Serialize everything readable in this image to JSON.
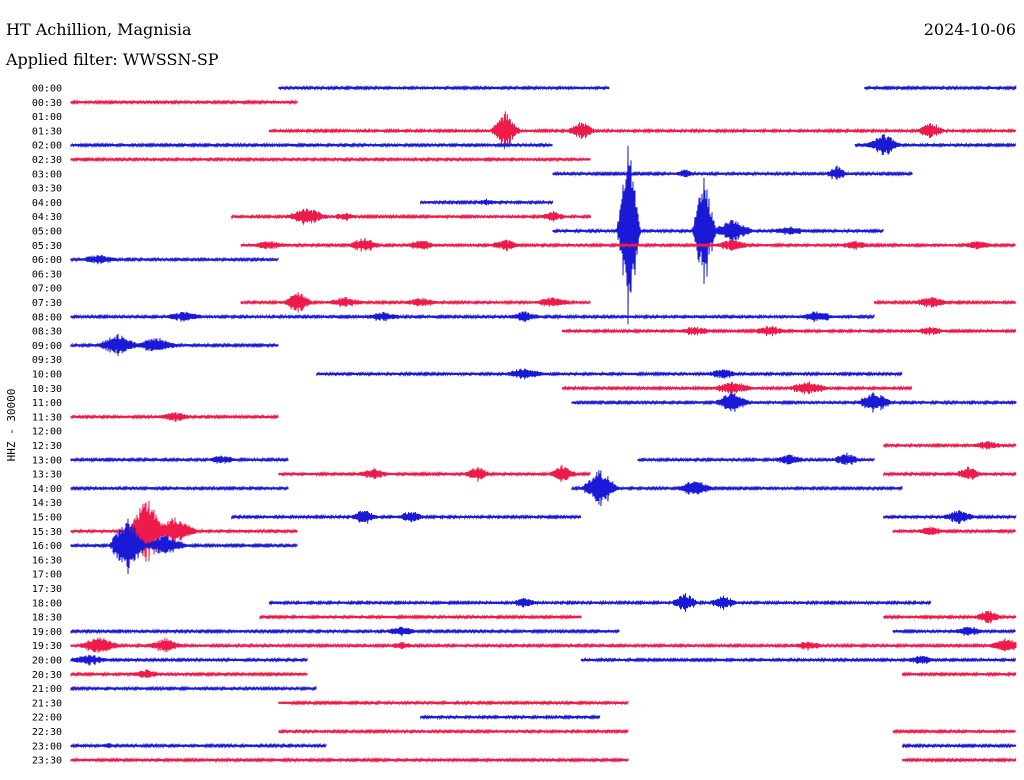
{
  "header": {
    "station": "HT Achillion, Magnisia",
    "date": "2024-10-06",
    "filter": "Applied filter: WWSSN-SP"
  },
  "chart_data": {
    "type": "line",
    "kind": "helicorder",
    "ylabel": "HHZ - 30000",
    "colors": {
      "even_row": "#1a1ad6",
      "odd_row": "#ee1a4a"
    },
    "rows": [
      {
        "label": "00:00",
        "segments": [
          [
            0.22,
            0.57
          ],
          [
            0.84,
            1.0
          ]
        ],
        "events": []
      },
      {
        "label": "00:30",
        "segments": [
          [
            0.0,
            0.24
          ]
        ],
        "events": []
      },
      {
        "label": "01:00",
        "segments": [],
        "events": []
      },
      {
        "label": "01:30",
        "segments": [
          [
            0.21,
            1.0
          ]
        ],
        "events": [
          [
            0.46,
            20,
            4
          ],
          [
            0.54,
            10,
            4
          ],
          [
            0.91,
            10,
            4
          ]
        ]
      },
      {
        "label": "02:00",
        "segments": [
          [
            0.0,
            0.51
          ],
          [
            0.83,
            1.0
          ]
        ],
        "events": [
          [
            0.86,
            12,
            5
          ]
        ]
      },
      {
        "label": "02:30",
        "segments": [
          [
            0.0,
            0.55
          ]
        ],
        "events": []
      },
      {
        "label": "03:00",
        "segments": [
          [
            0.51,
            0.89
          ]
        ],
        "events": [
          [
            0.65,
            5,
            3
          ],
          [
            0.81,
            9,
            3
          ]
        ]
      },
      {
        "label": "03:30",
        "segments": [],
        "events": []
      },
      {
        "label": "04:00",
        "segments": [
          [
            0.37,
            0.51
          ]
        ],
        "events": [
          [
            0.44,
            4,
            4
          ]
        ]
      },
      {
        "label": "04:30",
        "segments": [
          [
            0.17,
            0.55
          ]
        ],
        "events": [
          [
            0.25,
            10,
            6
          ],
          [
            0.29,
            5,
            4
          ],
          [
            0.51,
            6,
            4
          ]
        ]
      },
      {
        "label": "05:00",
        "segments": [
          [
            0.51,
            0.86
          ]
        ],
        "events": [
          [
            0.59,
            90,
            3
          ],
          [
            0.67,
            60,
            3
          ],
          [
            0.7,
            12,
            6
          ],
          [
            0.76,
            5,
            6
          ]
        ]
      },
      {
        "label": "05:30",
        "segments": [
          [
            0.18,
            1.0
          ]
        ],
        "events": [
          [
            0.21,
            5,
            6
          ],
          [
            0.31,
            8,
            5
          ],
          [
            0.37,
            6,
            5
          ],
          [
            0.46,
            6,
            5
          ],
          [
            0.7,
            6,
            6
          ],
          [
            0.83,
            5,
            5
          ],
          [
            0.96,
            5,
            5
          ]
        ]
      },
      {
        "label": "06:00",
        "segments": [
          [
            0.0,
            0.22
          ]
        ],
        "events": [
          [
            0.03,
            6,
            6
          ]
        ]
      },
      {
        "label": "06:30",
        "segments": [],
        "events": []
      },
      {
        "label": "07:00",
        "segments": [],
        "events": []
      },
      {
        "label": "07:30",
        "segments": [
          [
            0.18,
            0.55
          ],
          [
            0.85,
            1.0
          ]
        ],
        "events": [
          [
            0.24,
            12,
            4
          ],
          [
            0.29,
            6,
            6
          ],
          [
            0.37,
            5,
            6
          ],
          [
            0.51,
            6,
            6
          ],
          [
            0.91,
            6,
            6
          ]
        ]
      },
      {
        "label": "08:00",
        "segments": [
          [
            0.0,
            0.85
          ]
        ],
        "events": [
          [
            0.12,
            6,
            6
          ],
          [
            0.33,
            5,
            6
          ],
          [
            0.48,
            6,
            5
          ],
          [
            0.79,
            7,
            5
          ]
        ]
      },
      {
        "label": "08:30",
        "segments": [
          [
            0.52,
            1.0
          ]
        ],
        "events": [
          [
            0.66,
            5,
            6
          ],
          [
            0.74,
            6,
            5
          ],
          [
            0.91,
            5,
            5
          ]
        ]
      },
      {
        "label": "09:00",
        "segments": [
          [
            0.0,
            0.22
          ]
        ],
        "events": [
          [
            0.05,
            12,
            6
          ],
          [
            0.09,
            9,
            6
          ]
        ]
      },
      {
        "label": "09:30",
        "segments": [],
        "events": []
      },
      {
        "label": "10:00",
        "segments": [
          [
            0.26,
            0.88
          ]
        ],
        "events": [
          [
            0.48,
            7,
            6
          ],
          [
            0.69,
            6,
            5
          ]
        ]
      },
      {
        "label": "10:30",
        "segments": [
          [
            0.52,
            0.89
          ]
        ],
        "events": [
          [
            0.7,
            8,
            6
          ],
          [
            0.78,
            8,
            6
          ]
        ]
      },
      {
        "label": "11:00",
        "segments": [
          [
            0.53,
            1.0
          ]
        ],
        "events": [
          [
            0.7,
            12,
            5
          ],
          [
            0.85,
            12,
            5
          ]
        ]
      },
      {
        "label": "11:30",
        "segments": [
          [
            0.0,
            0.22
          ]
        ],
        "events": [
          [
            0.11,
            5,
            6
          ]
        ]
      },
      {
        "label": "12:00",
        "segments": [],
        "events": []
      },
      {
        "label": "12:30",
        "segments": [
          [
            0.86,
            1.0
          ]
        ],
        "events": [
          [
            0.97,
            5,
            5
          ]
        ]
      },
      {
        "label": "13:00",
        "segments": [
          [
            0.0,
            0.23
          ],
          [
            0.6,
            0.85
          ]
        ],
        "events": [
          [
            0.16,
            5,
            5
          ],
          [
            0.76,
            6,
            5
          ],
          [
            0.82,
            8,
            4
          ]
        ]
      },
      {
        "label": "13:30",
        "segments": [
          [
            0.22,
            0.55
          ],
          [
            0.86,
            1.0
          ]
        ],
        "events": [
          [
            0.32,
            6,
            5
          ],
          [
            0.43,
            8,
            4
          ],
          [
            0.52,
            10,
            4
          ],
          [
            0.95,
            8,
            4
          ]
        ]
      },
      {
        "label": "14:00",
        "segments": [
          [
            0.0,
            0.23
          ],
          [
            0.53,
            0.88
          ]
        ],
        "events": [
          [
            0.56,
            20,
            5
          ],
          [
            0.66,
            10,
            5
          ]
        ]
      },
      {
        "label": "14:30",
        "segments": [],
        "events": []
      },
      {
        "label": "15:00",
        "segments": [
          [
            0.17,
            0.54
          ],
          [
            0.86,
            1.0
          ]
        ],
        "events": [
          [
            0.31,
            8,
            4
          ],
          [
            0.36,
            7,
            4
          ],
          [
            0.94,
            8,
            5
          ]
        ]
      },
      {
        "label": "15:30",
        "segments": [
          [
            0.0,
            0.24
          ],
          [
            0.87,
            1.0
          ]
        ],
        "events": [
          [
            0.08,
            35,
            5
          ],
          [
            0.11,
            15,
            6
          ],
          [
            0.91,
            5,
            5
          ]
        ]
      },
      {
        "label": "16:00",
        "segments": [
          [
            0.0,
            0.24
          ]
        ],
        "events": [
          [
            0.06,
            30,
            5
          ],
          [
            0.1,
            12,
            6
          ]
        ]
      },
      {
        "label": "16:30",
        "segments": [],
        "events": []
      },
      {
        "label": "17:00",
        "segments": [],
        "events": []
      },
      {
        "label": "17:30",
        "segments": [],
        "events": []
      },
      {
        "label": "18:00",
        "segments": [
          [
            0.21,
            0.91
          ]
        ],
        "events": [
          [
            0.48,
            6,
            4
          ],
          [
            0.65,
            10,
            4
          ],
          [
            0.69,
            8,
            4
          ]
        ]
      },
      {
        "label": "18:30",
        "segments": [
          [
            0.2,
            0.54
          ],
          [
            0.86,
            1.0
          ]
        ],
        "events": [
          [
            0.97,
            8,
            4
          ]
        ]
      },
      {
        "label": "19:00",
        "segments": [
          [
            0.0,
            0.58
          ],
          [
            0.87,
            1.0
          ]
        ],
        "events": [
          [
            0.35,
            6,
            5
          ],
          [
            0.95,
            6,
            5
          ]
        ]
      },
      {
        "label": "19:30",
        "segments": [
          [
            0.0,
            1.0
          ]
        ],
        "events": [
          [
            0.03,
            10,
            6
          ],
          [
            0.1,
            8,
            5
          ],
          [
            0.35,
            4,
            4
          ],
          [
            0.78,
            5,
            5
          ],
          [
            0.99,
            8,
            5
          ]
        ]
      },
      {
        "label": "20:00",
        "segments": [
          [
            0.0,
            0.25
          ],
          [
            0.54,
            1.0
          ]
        ],
        "events": [
          [
            0.02,
            6,
            6
          ],
          [
            0.9,
            5,
            5
          ]
        ]
      },
      {
        "label": "20:30",
        "segments": [
          [
            0.0,
            0.25
          ],
          [
            0.88,
            1.0
          ]
        ],
        "events": [
          [
            0.08,
            5,
            5
          ]
        ]
      },
      {
        "label": "21:00",
        "segments": [
          [
            0.0,
            0.26
          ]
        ],
        "events": []
      },
      {
        "label": "21:30",
        "segments": [
          [
            0.22,
            0.59
          ]
        ],
        "events": []
      },
      {
        "label": "22:00",
        "segments": [
          [
            0.37,
            0.56
          ]
        ],
        "events": []
      },
      {
        "label": "22:30",
        "segments": [
          [
            0.22,
            0.59
          ],
          [
            0.87,
            1.0
          ]
        ],
        "events": []
      },
      {
        "label": "23:00",
        "segments": [
          [
            0.0,
            0.27
          ],
          [
            0.88,
            1.0
          ]
        ],
        "events": [
          [
            0.04,
            3,
            3
          ]
        ]
      },
      {
        "label": "23:30",
        "segments": [
          [
            0.0,
            0.59
          ],
          [
            0.88,
            1.0
          ]
        ],
        "events": []
      }
    ]
  }
}
